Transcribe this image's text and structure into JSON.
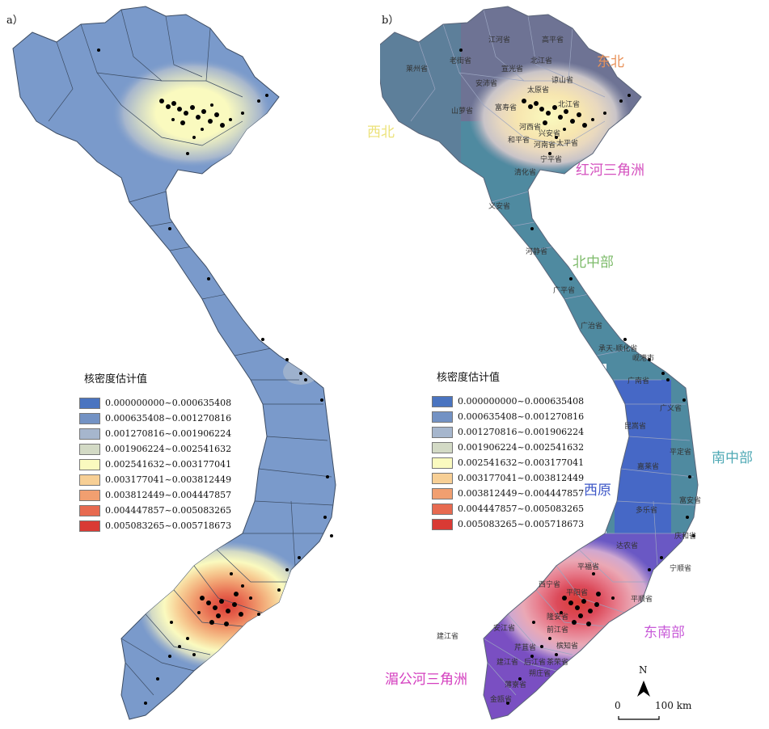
{
  "panel_a": {
    "label": "a）"
  },
  "panel_b": {
    "label": "b）"
  },
  "legend": {
    "title": "核密度估计值",
    "classes": [
      {
        "range": "0.000000000~0.000635408",
        "color": "#4a74c0"
      },
      {
        "range": "0.000635408~0.001270816",
        "color": "#7392c4"
      },
      {
        "range": "0.001270816~0.001906224",
        "color": "#a6b6cd"
      },
      {
        "range": "0.001906224~0.002541632",
        "color": "#d3dac5"
      },
      {
        "range": "0.002541632~0.003177041",
        "color": "#fafabf"
      },
      {
        "range": "0.003177041~0.003812449",
        "color": "#f7cf95"
      },
      {
        "range": "0.003812449~0.004447857",
        "color": "#f19f70"
      },
      {
        "range": "0.004447857~0.005083265",
        "color": "#e76a50"
      },
      {
        "range": "0.005083265~0.005718673",
        "color": "#d93a34"
      }
    ]
  },
  "regions": [
    {
      "name": "东北",
      "color": "#e8925a"
    },
    {
      "name": "西北",
      "color": "#ece27a"
    },
    {
      "name": "红河三角洲",
      "color": "#d44fbe"
    },
    {
      "name": "北中部",
      "color": "#7dbb6a"
    },
    {
      "name": "南中部",
      "color": "#4fa9b5"
    },
    {
      "name": "西原",
      "color": "#3d57c7"
    },
    {
      "name": "东南部",
      "color": "#c85bd8"
    },
    {
      "name": "湄公河三角洲",
      "color": "#d43fbf"
    }
  ],
  "provinces": [
    "江河省",
    "高平省",
    "老街省",
    "北江省",
    "莱州省",
    "宣光省",
    "谅山省",
    "安沛省",
    "太原省",
    "山萝省",
    "富寿省",
    "北江省",
    "河西省",
    "兴安省",
    "和平省",
    "太平省",
    "河南省",
    "宁平省",
    "清化省",
    "义安省",
    "河静省",
    "广平省",
    "广治省",
    "承天-顺化省",
    "岘港市",
    "广南省",
    "广义省",
    "昆嵩省",
    "平定省",
    "嘉莱省",
    "富安省",
    "多乐省",
    "庆和省",
    "达农省",
    "平福省",
    "宁顺省",
    "西宁省",
    "平顺省",
    "平阳省",
    "隆安省",
    "安江省",
    "前江省",
    "槟知省",
    "芹苴省",
    "建江省",
    "后江省",
    "茶荣省",
    "朔庄省",
    "薄寮省",
    "金瓯省",
    "建江省"
  ],
  "scale": {
    "north": "N",
    "zero": "0",
    "dist": "100 km"
  },
  "colors": {
    "base_a": "#7a9acb",
    "boundary": "#3c4c63",
    "point": "#000000",
    "west": "#5d7f9a",
    "northeast": "#6e7394",
    "central": "#4f8aa0",
    "highlands": "#4668c6",
    "southeast": "#6a58c4",
    "mekong": "#7a4fc2"
  }
}
